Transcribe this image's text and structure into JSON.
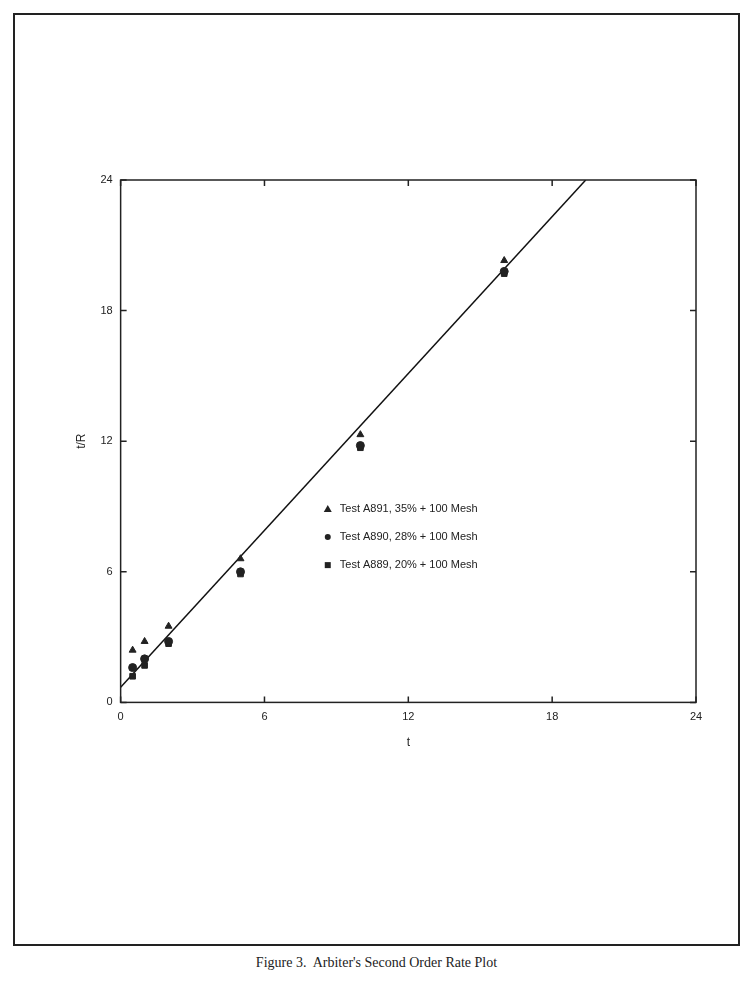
{
  "chart_data": {
    "type": "scatter",
    "title": "Figure 3.  Arbiter's Second Order Rate Plot",
    "x_label": "t",
    "y_label": "t/R",
    "xlim": [
      0,
      24
    ],
    "ylim": [
      0,
      24
    ],
    "xticks": [
      0,
      6,
      12,
      18,
      24
    ],
    "yticks": [
      0,
      6,
      12,
      18,
      24
    ],
    "grid": false,
    "legend": "right",
    "series": [
      {
        "name": "Test A891, 35% + 100 Mesh",
        "color": "#222222",
        "marker": "triangle",
        "x": [
          0.5,
          1,
          2,
          5,
          10,
          16
        ],
        "values": [
          2.4,
          2.8,
          3.5,
          6.6,
          12.3,
          20.3
        ]
      },
      {
        "name": "Test A890, 28% + 100 Mesh",
        "color": "#222222",
        "marker": "circle",
        "x": [
          0.5,
          1,
          2,
          5,
          10,
          16
        ],
        "values": [
          1.6,
          2.0,
          2.8,
          6.0,
          11.8,
          19.8
        ]
      },
      {
        "name": "Test A889, 20% + 100 Mesh",
        "color": "#222222",
        "marker": "square",
        "x": [
          0.5,
          1,
          2,
          5,
          10,
          16
        ],
        "values": [
          1.2,
          1.7,
          2.7,
          5.9,
          11.7,
          19.7
        ]
      },
      {
        "type": "line",
        "color": "#111111",
        "line_style": "solid",
        "x": [
          0,
          19.4
        ],
        "values": [
          0.7,
          24
        ]
      }
    ]
  }
}
